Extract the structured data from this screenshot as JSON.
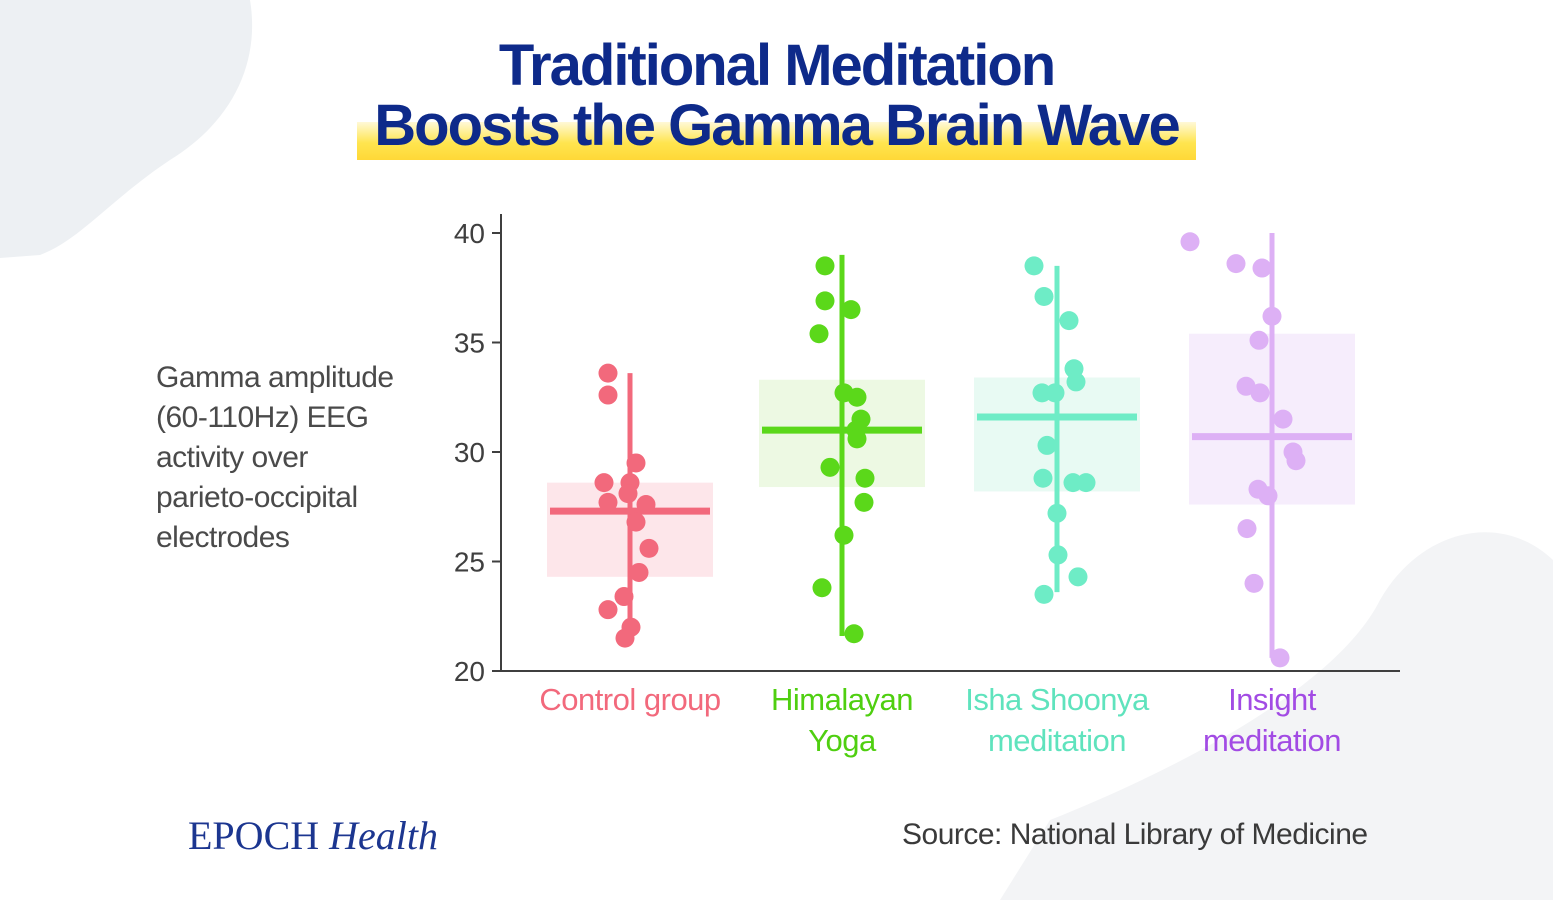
{
  "title_line1": "Traditional Meditation",
  "title_line2": "Boosts the Gamma Brain Wave",
  "ylabel_lines": [
    "Gamma amplitude",
    "(60-110Hz) EEG",
    "activity over",
    "parieto-occipital",
    "electrodes"
  ],
  "brand": {
    "part1": "EPOCH",
    "part2": "Health"
  },
  "source": "Source: National Library of Medicine",
  "colors": {
    "title": "#0e2a8a",
    "highlight": "#ffe54f",
    "axis": "#3f3f3f"
  },
  "chart_data": {
    "type": "scatter",
    "ylim": [
      20,
      40
    ],
    "yticks": [
      20,
      25,
      30,
      35,
      40
    ],
    "grid": false,
    "groups": [
      {
        "label_lines": [
          "Control group"
        ],
        "color": "#f2697c",
        "box_fill": "#fde6ea",
        "text_color": "#f2697c",
        "mean": 27.3,
        "box": [
          24.3,
          28.6
        ],
        "range": [
          21.5,
          33.6
        ],
        "points": [
          33.6,
          32.6,
          29.5,
          28.6,
          28.6,
          28.1,
          27.7,
          27.6,
          26.8,
          25.6,
          24.5,
          23.4,
          22.8,
          22.0,
          21.5
        ]
      },
      {
        "label_lines": [
          "Himalayan",
          "Yoga"
        ],
        "color": "#5bd81a",
        "box_fill": "#edf9e3",
        "text_color": "#4fcf10",
        "mean": 31.0,
        "box": [
          28.4,
          33.3
        ],
        "range": [
          21.6,
          39.0
        ],
        "points": [
          38.5,
          36.9,
          36.5,
          35.4,
          32.7,
          32.5,
          31.5,
          31.0,
          30.6,
          29.3,
          28.8,
          27.7,
          26.2,
          23.8,
          21.7
        ]
      },
      {
        "label_lines": [
          "Isha Shoonya",
          "meditation"
        ],
        "color": "#6eecc6",
        "box_fill": "#e8faf3",
        "text_color": "#5fe3bd",
        "mean": 31.6,
        "box": [
          28.2,
          33.4
        ],
        "range": [
          23.6,
          38.5
        ],
        "points": [
          38.5,
          37.1,
          36.0,
          33.8,
          33.2,
          32.7,
          32.7,
          30.3,
          28.8,
          28.6,
          28.6,
          27.2,
          25.3,
          24.3,
          23.5
        ]
      },
      {
        "label_lines": [
          "Insight",
          "meditation"
        ],
        "color": "#ddb0f5",
        "box_fill": "#f6edfc",
        "text_color": "#a24be4",
        "mean": 30.7,
        "box": [
          27.6,
          35.4
        ],
        "range": [
          20.6,
          40.0
        ],
        "points": [
          39.6,
          38.6,
          38.4,
          36.2,
          35.1,
          33.0,
          32.7,
          31.5,
          30.0,
          29.6,
          28.3,
          28.0,
          26.5,
          24.0,
          20.6
        ]
      }
    ]
  }
}
